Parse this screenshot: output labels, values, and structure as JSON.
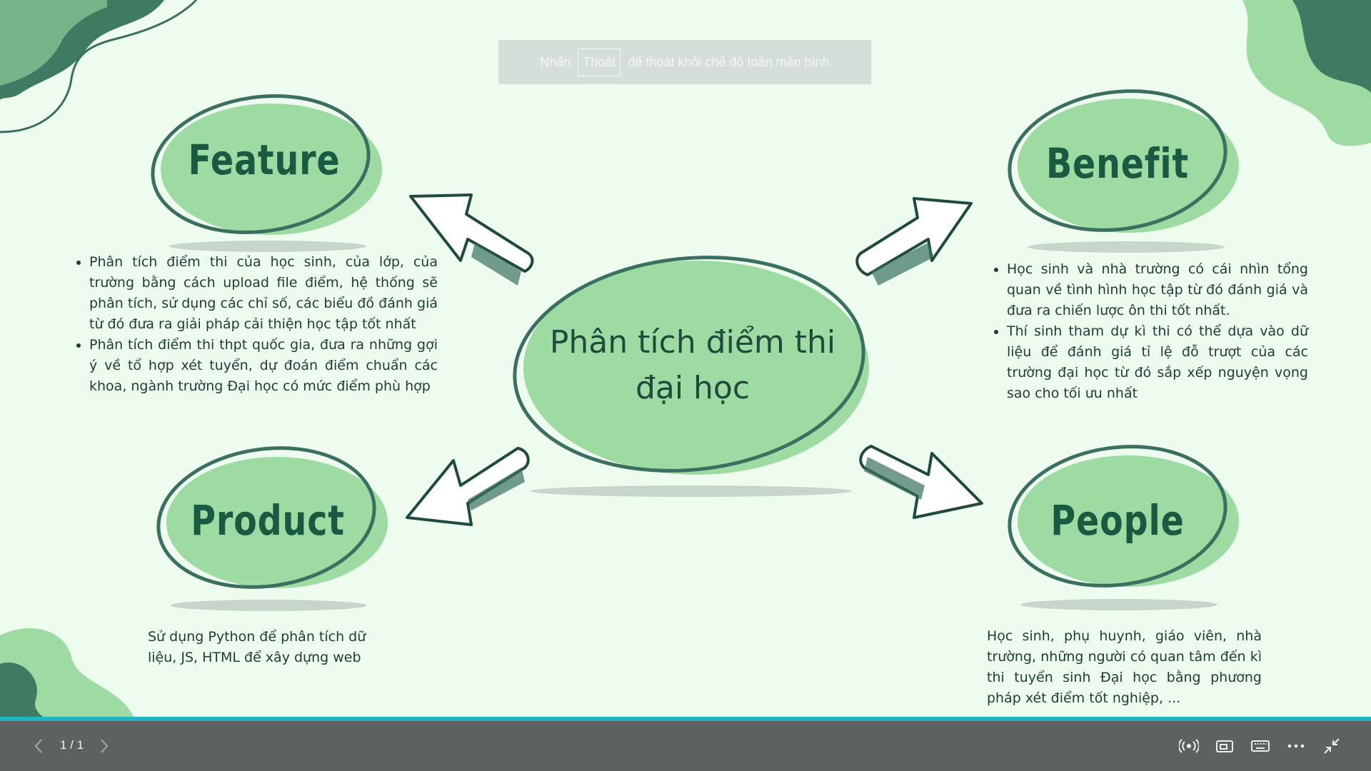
{
  "slide": {
    "center_title_line1": "Phân tích điểm thi",
    "center_title_line2": "đại học",
    "feature": {
      "title": "Feature",
      "bullets": [
        "Phân tích điểm thi của học sinh, của lớp, của trường bằng cách upload file điểm, hệ thống sẽ phân tích, sử dụng các chỉ số, các biểu đồ đánh giá từ đó đưa ra giải pháp cải thiện học tập tốt nhất",
        "Phân tích điểm thi thpt quốc gia, đưa ra những gợi ý về tổ hợp xét tuyển, dự đoán điểm chuẩn các khoa, ngành trường Đại học có mức điểm phù hợp"
      ]
    },
    "benefit": {
      "title": "Benefit",
      "bullets": [
        "Học sinh và nhà trường có cái nhìn tổng quan về tình hình học tập từ đó đánh giá và đưa ra chiến lược ôn thi tốt nhất.",
        "Thí sinh tham dự kì thi có thể dựa vào dữ liệu để đánh giá tỉ lệ đỗ trượt của các trường đại học từ đó sắp xếp nguyện vọng sao cho  tối ưu nhất"
      ]
    },
    "product": {
      "title": "Product",
      "text": "Sử dụng Python để phân tích dữ liệu, JS, HTML để xây dựng web"
    },
    "people": {
      "title": "People",
      "text": "Học sinh, phụ huynh, giáo viên, nhà trường, những người có quan tâm đến kì thi tuyển sinh Đại học bằng phương pháp xét điểm tốt nghiệp, ..."
    }
  },
  "exit_hint": {
    "prefix": "Nhấn",
    "key": "Thoát",
    "suffix": "để thoát khỏi chế độ toàn màn hình"
  },
  "toolbar": {
    "page_indicator": "1 / 1",
    "icons": [
      "prev-icon",
      "next-icon",
      "broadcast-icon",
      "presenter-view-icon",
      "keyboard-icon",
      "more-icon",
      "exit-fullscreen-icon"
    ]
  },
  "colors": {
    "background": "#eefcf0",
    "blob_fill": "#9ddba3",
    "outline": "#3b7060",
    "title_text": "#1b5a42",
    "toolbar": "#5d6260",
    "accent_line": "#21b5c2"
  }
}
